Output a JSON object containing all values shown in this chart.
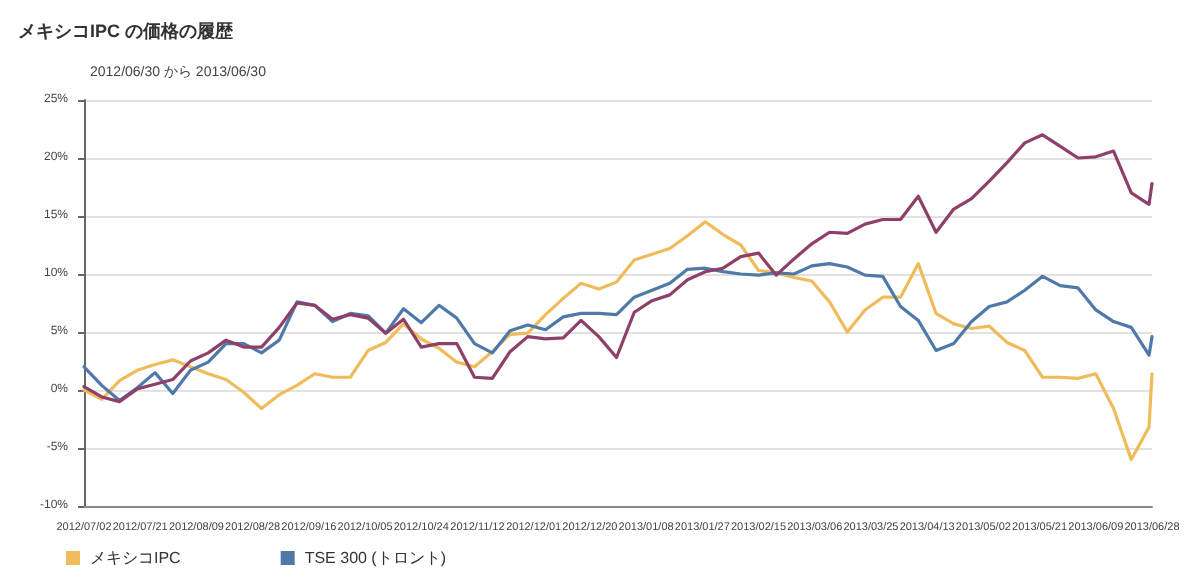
{
  "chart_data": {
    "type": "line",
    "title": "メキシコIPC の価格の履歴",
    "subtitle": "2012/06/30 から 2013/06/30",
    "x": [
      "2012-07-02",
      "2012-07-08",
      "2012-07-14",
      "2012-07-20",
      "2012-07-26",
      "2012-08-01",
      "2012-08-07",
      "2012-08-13",
      "2012-08-19",
      "2012-08-25",
      "2012-08-31",
      "2012-09-06",
      "2012-09-12",
      "2012-09-18",
      "2012-09-24",
      "2012-09-30",
      "2012-10-06",
      "2012-10-12",
      "2012-10-18",
      "2012-10-24",
      "2012-10-30",
      "2012-11-05",
      "2012-11-11",
      "2012-11-17",
      "2012-11-23",
      "2012-11-29",
      "2012-12-05",
      "2012-12-11",
      "2012-12-17",
      "2012-12-23",
      "2012-12-29",
      "2013-01-04",
      "2013-01-10",
      "2013-01-16",
      "2013-01-22",
      "2013-01-28",
      "2013-02-03",
      "2013-02-09",
      "2013-02-15",
      "2013-02-21",
      "2013-02-27",
      "2013-03-05",
      "2013-03-11",
      "2013-03-17",
      "2013-03-23",
      "2013-03-29",
      "2013-04-04",
      "2013-04-10",
      "2013-04-16",
      "2013-04-22",
      "2013-04-28",
      "2013-05-04",
      "2013-05-10",
      "2013-05-16",
      "2013-05-22",
      "2013-05-28",
      "2013-06-03",
      "2013-06-09",
      "2013-06-15",
      "2013-06-21",
      "2013-06-27",
      "2013-06-28"
    ],
    "series": [
      {
        "name": "メキシコIPC",
        "color": "#f0bb5a",
        "values": [
          0,
          -0.8,
          0.8,
          1.7,
          2.2,
          2.6,
          2.0,
          1.4,
          0.9,
          -0.2,
          -1.6,
          -0.4,
          0.4,
          1.4,
          1.1,
          1.1,
          3.4,
          4.1,
          5.7,
          4.4,
          3.6,
          2.4,
          2.0,
          3.3,
          4.8,
          4.9,
          6.5,
          7.9,
          9.2,
          8.7,
          9.3,
          11.2,
          11.7,
          12.2,
          13.3,
          14.5,
          13.4,
          12.5,
          10.3,
          10.1,
          9.7,
          9.4,
          7.6,
          5.0,
          6.9,
          8.0,
          8.0,
          10.9,
          6.6,
          5.7,
          5.3,
          5.5,
          4.1,
          3.4,
          1.1,
          1.1,
          1.0,
          1.4,
          -1.6,
          -6.0,
          -3.2,
          1.4
        ]
      },
      {
        "name": "TSE 300 (トロント)",
        "color": "#4f79a8",
        "values": [
          2.0,
          0.4,
          -0.9,
          0.2,
          1.5,
          -0.3,
          1.7,
          2.4,
          4.0,
          4.0,
          3.2,
          4.3,
          7.6,
          7.3,
          5.9,
          6.6,
          6.4,
          4.9,
          7.0,
          5.8,
          7.3,
          6.2,
          4.0,
          3.2,
          5.1,
          5.6,
          5.2,
          6.3,
          6.6,
          6.6,
          6.5,
          8.0,
          8.6,
          9.2,
          10.4,
          10.5,
          10.2,
          10.0,
          9.9,
          10.1,
          10.0,
          10.7,
          10.9,
          10.6,
          9.9,
          9.8,
          7.2,
          6.0,
          3.4,
          4.0,
          5.9,
          7.2,
          7.6,
          8.6,
          9.8,
          9.0,
          8.8,
          6.9,
          5.9,
          5.4,
          3.0,
          4.6
        ]
      },
      {
        "color": "#8e3f6a",
        "values": [
          0.3,
          -0.6,
          -1.0,
          0.1,
          0.5,
          0.9,
          2.5,
          3.2,
          4.3,
          3.7,
          3.7,
          5.4,
          7.5,
          7.3,
          6.1,
          6.5,
          6.2,
          4.9,
          6.1,
          3.7,
          4.0,
          4.0,
          1.1,
          1.0,
          3.3,
          4.6,
          4.4,
          4.5,
          6.0,
          4.6,
          2.8,
          6.7,
          7.7,
          8.2,
          9.5,
          10.2,
          10.5,
          11.5,
          11.8,
          9.9,
          11.3,
          12.6,
          13.6,
          13.5,
          14.3,
          14.7,
          14.7,
          16.7,
          13.6,
          15.6,
          16.5,
          18.0,
          19.6,
          21.3,
          22.0,
          21.0,
          20.0,
          20.1,
          20.6,
          17.0,
          16.0,
          17.8
        ]
      }
    ],
    "xlim": [
      "2012-07-02",
      "2013-06-28"
    ],
    "xticks": [
      {
        "value": "2012-07-02",
        "label": "2012/07/02"
      },
      {
        "value": "2012-07-21",
        "label": "2012/07/21"
      },
      {
        "value": "2012-08-09",
        "label": "2012/08/09"
      },
      {
        "value": "2012-08-28",
        "label": "2012/08/28"
      },
      {
        "value": "2012-09-16",
        "label": "2012/09/16"
      },
      {
        "value": "2012-10-05",
        "label": "2012/10/05"
      },
      {
        "value": "2012-10-24",
        "label": "2012/10/24"
      },
      {
        "value": "2012-11-12",
        "label": "2012/11/12"
      },
      {
        "value": "2012-12-01",
        "label": "2012/12/01"
      },
      {
        "value": "2012-12-20",
        "label": "2012/12/20"
      },
      {
        "value": "2013-01-08",
        "label": "2013/01/08"
      },
      {
        "value": "2013-01-27",
        "label": "2013/01/27"
      },
      {
        "value": "2013-02-15",
        "label": "2013/02/15"
      },
      {
        "value": "2013-03-06",
        "label": "2013/03/06"
      },
      {
        "value": "2013-03-25",
        "label": "2013/03/25"
      },
      {
        "value": "2013-04-13",
        "label": "2013/04/13"
      },
      {
        "value": "2013-05-02",
        "label": "2013/05/02"
      },
      {
        "value": "2013-05-21",
        "label": "2013/05/21"
      },
      {
        "value": "2013-06-09",
        "label": "2013/06/09"
      },
      {
        "value": "2013-06-28",
        "label": "2013/06/28"
      }
    ],
    "ylim": [
      -10,
      25
    ],
    "yticks": [
      {
        "value": -10,
        "label": "-10%"
      },
      {
        "value": -5,
        "label": "-5%"
      },
      {
        "value": 0,
        "label": "0%"
      },
      {
        "value": 5,
        "label": "5%"
      },
      {
        "value": 10,
        "label": "10%"
      },
      {
        "value": 15,
        "label": "15%"
      },
      {
        "value": 20,
        "label": "20%"
      },
      {
        "value": 25,
        "label": "25%"
      }
    ],
    "grid": "y",
    "legend": "bottom left",
    "marker": "none",
    "line_style": "solid"
  }
}
